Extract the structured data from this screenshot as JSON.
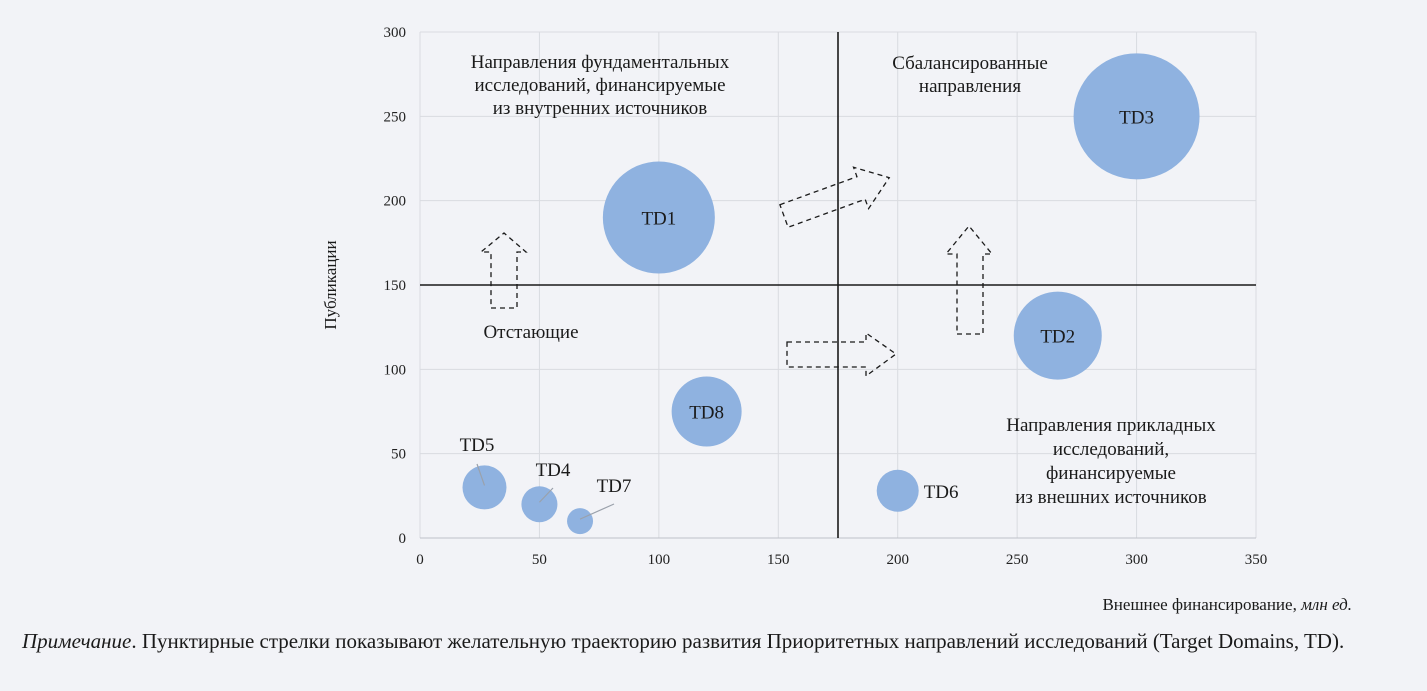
{
  "chart_data": {
    "type": "scatter",
    "variant": "bubble",
    "xlabel": "Внешнее финансирование,",
    "xlabel_unit": "млн ед.",
    "ylabel": "Публикации",
    "xlim": [
      0,
      350
    ],
    "ylim": [
      0,
      300
    ],
    "x_ticks": [
      "0",
      "50",
      "100",
      "150",
      "200",
      "250",
      "300",
      "350"
    ],
    "y_ticks": [
      "0",
      "50",
      "100",
      "150",
      "200",
      "250",
      "300"
    ],
    "grid": true,
    "divider_x": 175,
    "divider_y": 150,
    "bubble_color": "#8fb2e0",
    "points": [
      {
        "name": "TD1",
        "x": 100,
        "y": 190,
        "r": 56,
        "label_pos": "center"
      },
      {
        "name": "TD2",
        "x": 267,
        "y": 120,
        "r": 44,
        "label_pos": "center"
      },
      {
        "name": "TD3",
        "x": 300,
        "y": 250,
        "r": 63,
        "label_pos": "center"
      },
      {
        "name": "TD4",
        "x": 50,
        "y": 20,
        "r": 18,
        "label_pos": "above-right"
      },
      {
        "name": "TD5",
        "x": 27,
        "y": 30,
        "r": 22,
        "label_pos": "above-left"
      },
      {
        "name": "TD6",
        "x": 200,
        "y": 28,
        "r": 21,
        "label_pos": "right"
      },
      {
        "name": "TD7",
        "x": 67,
        "y": 10,
        "r": 13,
        "label_pos": "above-right"
      },
      {
        "name": "TD8",
        "x": 120,
        "y": 75,
        "r": 35,
        "label_pos": "center"
      }
    ],
    "quadrant_labels": [
      {
        "text": [
          "Направления фундаментальных",
          "исследований, финансируемые",
          "из внутренних источников"
        ]
      },
      {
        "text": [
          "Сбалансированные",
          "направления"
        ]
      },
      {
        "text": [
          "Отстающие"
        ]
      },
      {
        "text": [
          "Направления прикладных",
          "исследований,",
          "финансируемые",
          "из внешних источников"
        ]
      }
    ],
    "arrows": [
      {
        "direction": "up"
      },
      {
        "direction": "up-right"
      },
      {
        "direction": "up"
      },
      {
        "direction": "right"
      }
    ]
  },
  "note": {
    "label": "Примечание",
    "text": ". Пунктирные стрелки показывают желательную траекторию развития Приоритетных направлений исследований (Target Domains, TD)."
  }
}
